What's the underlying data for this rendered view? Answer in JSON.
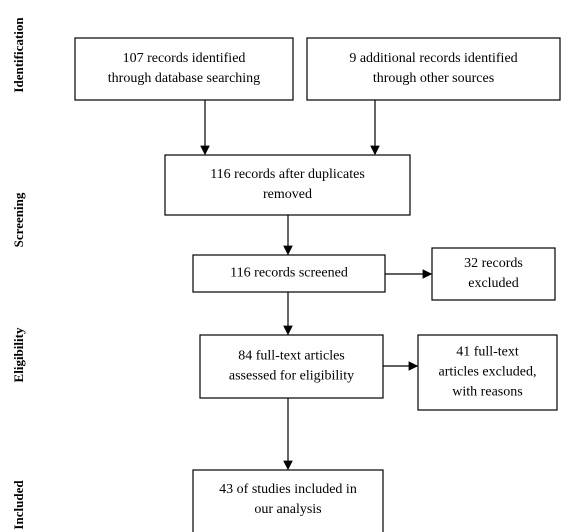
{
  "stages": [
    "Identification",
    "Screening",
    "Eligibility",
    "Included"
  ],
  "nodes": [
    {
      "lines": [
        "107 records identified",
        "through database searching"
      ]
    },
    {
      "lines": [
        "9 additional records identified",
        "through other sources"
      ]
    },
    {
      "lines": [
        "116 records after duplicates",
        "removed"
      ]
    },
    {
      "lines": [
        "116 records screened"
      ]
    },
    {
      "lines": [
        "32 records",
        "excluded"
      ]
    },
    {
      "lines": [
        "84 full-text articles",
        "assessed for eligibility"
      ]
    },
    {
      "lines": [
        "41 full-text",
        "articles excluded,",
        "with reasons"
      ]
    },
    {
      "lines": [
        "43 of studies included in",
        "our analysis"
      ]
    }
  ]
}
